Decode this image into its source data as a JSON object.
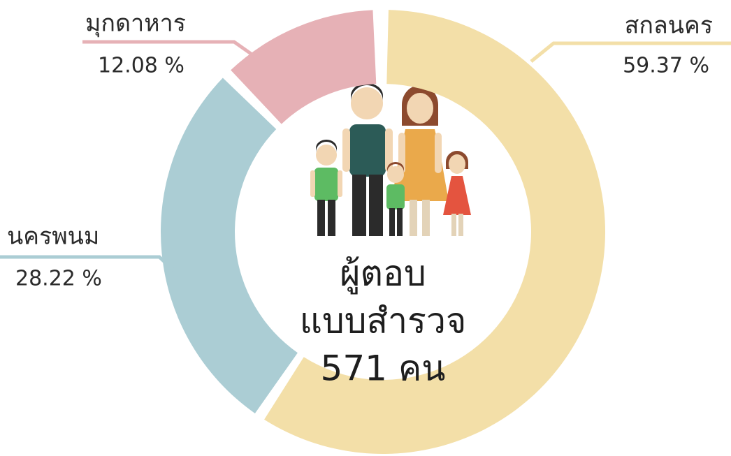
{
  "chart_data": {
    "type": "pie",
    "categories": [
      "สกลนคร",
      "นครพนม",
      "มุกดาหาร"
    ],
    "values": [
      59.37,
      28.22,
      12.08
    ],
    "value_labels": [
      "59.37 %",
      "28.22 %",
      "12.08 %"
    ],
    "colors": [
      "#f3dfa8",
      "#abcdd4",
      "#e6b1b6"
    ],
    "center_text": [
      "ผู้ตอบ",
      "แบบสำรวจ",
      "571 คน"
    ]
  }
}
